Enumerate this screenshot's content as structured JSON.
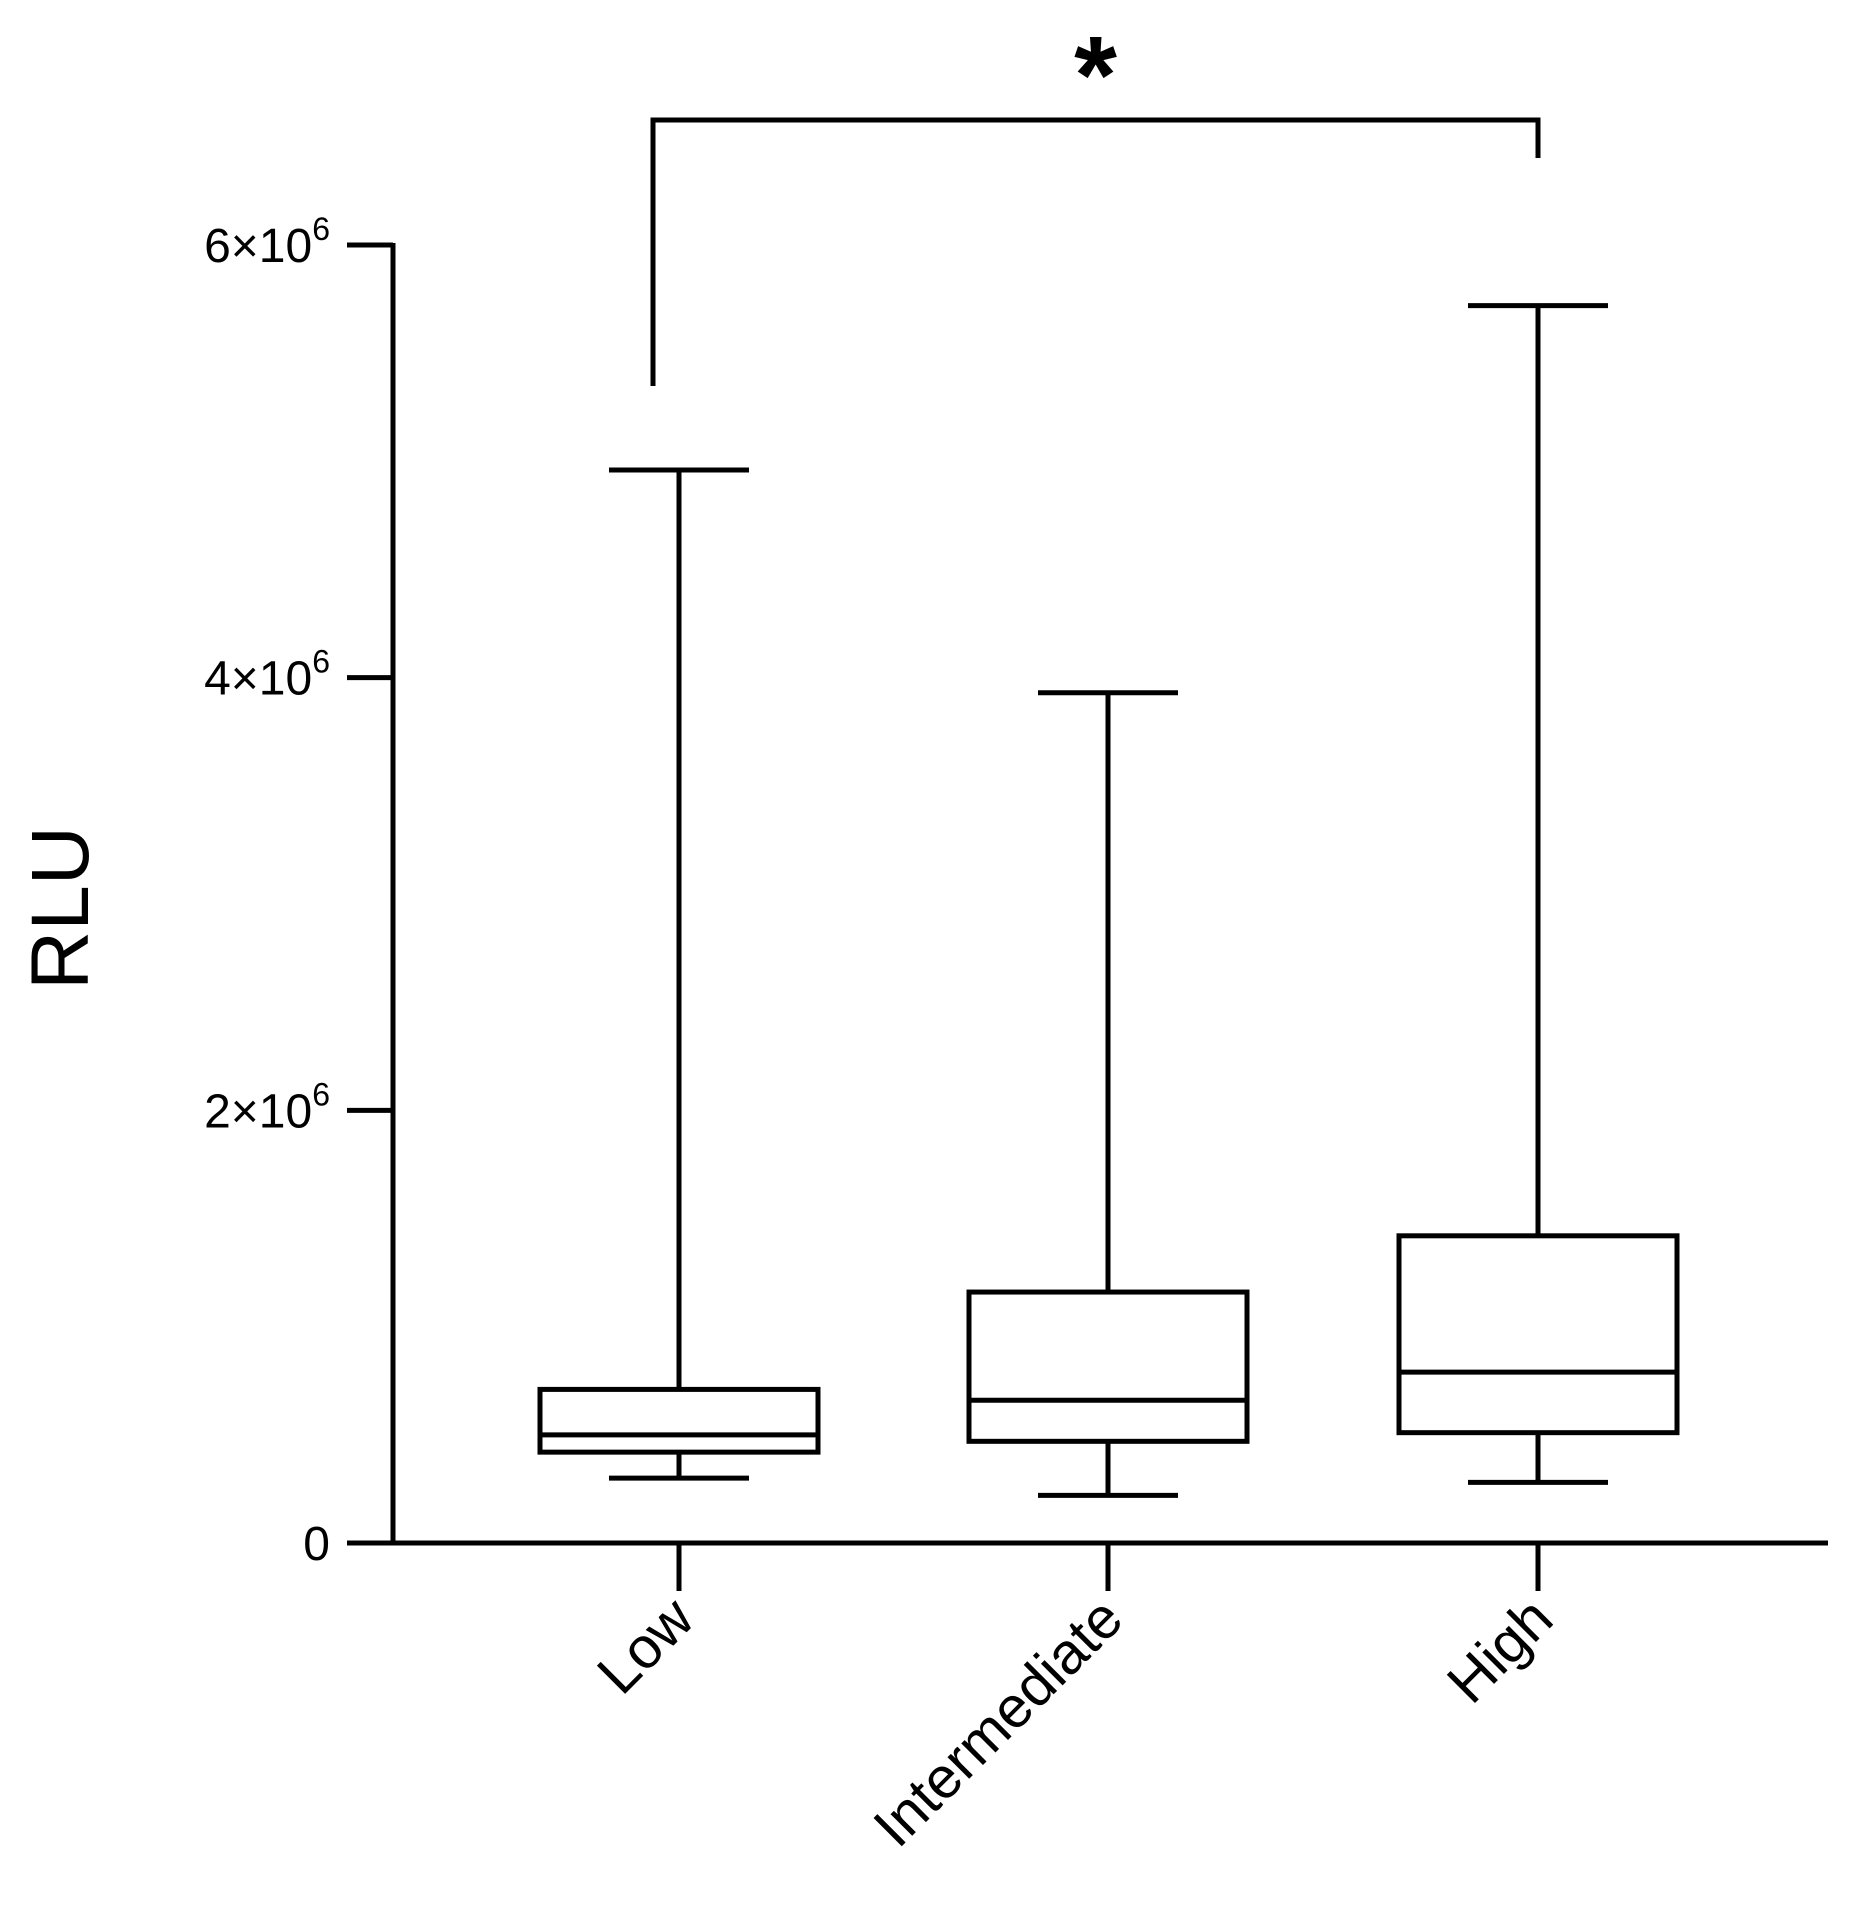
{
  "chart_data": {
    "type": "box",
    "title": "",
    "xlabel": "",
    "ylabel": "RLU",
    "ylim": [
      0,
      6000000
    ],
    "y_ticks": [
      {
        "value": 0,
        "mantissa": "0",
        "exponent": ""
      },
      {
        "value": 2000000,
        "mantissa": "2×10",
        "exponent": "6"
      },
      {
        "value": 4000000,
        "mantissa": "4×10",
        "exponent": "6"
      },
      {
        "value": 6000000,
        "mantissa": "6×10",
        "exponent": "6"
      }
    ],
    "categories": [
      "Low",
      "Intermediate",
      "High"
    ],
    "boxes": [
      {
        "category": "Low",
        "min": 300000,
        "q1": 420000,
        "median": 500000,
        "q3": 710000,
        "max": 4960000
      },
      {
        "category": "Intermediate",
        "min": 220000,
        "q1": 470000,
        "median": 660000,
        "q3": 1160000,
        "max": 3930000
      },
      {
        "category": "High",
        "min": 280000,
        "q1": 510000,
        "median": 790000,
        "q3": 1420000,
        "max": 5720000
      }
    ],
    "significance": [
      {
        "from": "Low",
        "to": "High",
        "label": "*"
      }
    ],
    "grid": false,
    "legend": "none"
  }
}
